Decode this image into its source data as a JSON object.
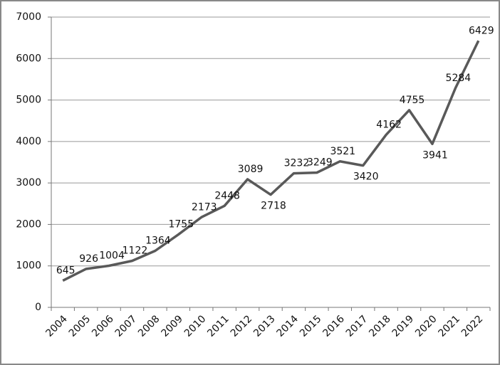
{
  "chart_data": {
    "type": "line",
    "categories": [
      "2004",
      "2005",
      "2006",
      "2007",
      "2008",
      "2009",
      "2010",
      "2011",
      "2012",
      "2013",
      "2014",
      "2015",
      "2016",
      "2017",
      "2018",
      "2019",
      "2020",
      "2021",
      "2022"
    ],
    "values": [
      645,
      926,
      1004,
      1122,
      1364,
      1755,
      2173,
      2448,
      3089,
      2718,
      3232,
      3249,
      3521,
      3420,
      4162,
      4755,
      3941,
      5284,
      6429
    ],
    "color": "#595959",
    "ylim": [
      0,
      7000
    ],
    "yticks": [
      0,
      1000,
      2000,
      3000,
      4000,
      5000,
      6000,
      7000
    ],
    "grid": true
  }
}
